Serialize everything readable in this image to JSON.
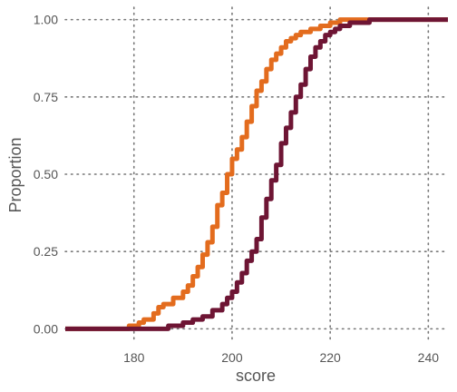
{
  "chart_data": {
    "type": "line",
    "step": "ecdf",
    "xlabel": "score",
    "ylabel": "Proportion",
    "xlim": [
      166,
      244
    ],
    "ylim": [
      -0.04,
      1.04
    ],
    "x_ticks": [
      180,
      200,
      220,
      240
    ],
    "x_tick_labels": [
      "180",
      "200",
      "220",
      "240"
    ],
    "y_ticks": [
      0,
      0.25,
      0.5,
      0.75,
      1
    ],
    "y_tick_labels": [
      "0.00",
      "0.25",
      "0.50",
      "0.75",
      "1.00"
    ],
    "grid": true,
    "legend": "none",
    "series": [
      {
        "color": "#e36c1e",
        "points": [
          [
            166,
            0
          ],
          [
            178,
            0
          ],
          [
            179,
            0.01
          ],
          [
            181,
            0.02
          ],
          [
            182,
            0.03
          ],
          [
            184,
            0.05
          ],
          [
            185,
            0.07
          ],
          [
            186,
            0.08
          ],
          [
            188,
            0.1
          ],
          [
            190,
            0.12
          ],
          [
            191,
            0.14
          ],
          [
            192,
            0.17
          ],
          [
            193,
            0.2
          ],
          [
            194,
            0.24
          ],
          [
            195,
            0.28
          ],
          [
            196,
            0.33
          ],
          [
            197,
            0.4
          ],
          [
            198,
            0.44
          ],
          [
            199,
            0.5
          ],
          [
            200,
            0.55
          ],
          [
            201,
            0.58
          ],
          [
            202,
            0.62
          ],
          [
            203,
            0.67
          ],
          [
            204,
            0.72
          ],
          [
            205,
            0.77
          ],
          [
            206,
            0.8
          ],
          [
            207,
            0.84
          ],
          [
            208,
            0.87
          ],
          [
            209,
            0.89
          ],
          [
            210,
            0.91
          ],
          [
            211,
            0.93
          ],
          [
            212,
            0.94
          ],
          [
            213,
            0.95
          ],
          [
            214,
            0.96
          ],
          [
            216,
            0.97
          ],
          [
            218,
            0.98
          ],
          [
            220,
            0.99
          ],
          [
            222,
            1.0
          ],
          [
            244,
            1.0
          ]
        ]
      },
      {
        "color": "#6e1534",
        "points": [
          [
            166,
            0
          ],
          [
            186,
            0
          ],
          [
            187,
            0.01
          ],
          [
            190,
            0.02
          ],
          [
            192,
            0.03
          ],
          [
            194,
            0.04
          ],
          [
            196,
            0.06
          ],
          [
            198,
            0.08
          ],
          [
            199,
            0.1
          ],
          [
            200,
            0.12
          ],
          [
            201,
            0.15
          ],
          [
            202,
            0.18
          ],
          [
            203,
            0.22
          ],
          [
            204,
            0.25
          ],
          [
            205,
            0.29
          ],
          [
            206,
            0.36
          ],
          [
            207,
            0.42
          ],
          [
            208,
            0.48
          ],
          [
            209,
            0.53
          ],
          [
            210,
            0.6
          ],
          [
            211,
            0.65
          ],
          [
            212,
            0.7
          ],
          [
            213,
            0.75
          ],
          [
            214,
            0.79
          ],
          [
            215,
            0.84
          ],
          [
            216,
            0.88
          ],
          [
            217,
            0.91
          ],
          [
            218,
            0.93
          ],
          [
            219,
            0.95
          ],
          [
            220,
            0.96
          ],
          [
            221,
            0.97
          ],
          [
            222,
            0.98
          ],
          [
            224,
            0.99
          ],
          [
            228,
            1.0
          ],
          [
            244,
            1.0
          ]
        ]
      }
    ]
  }
}
